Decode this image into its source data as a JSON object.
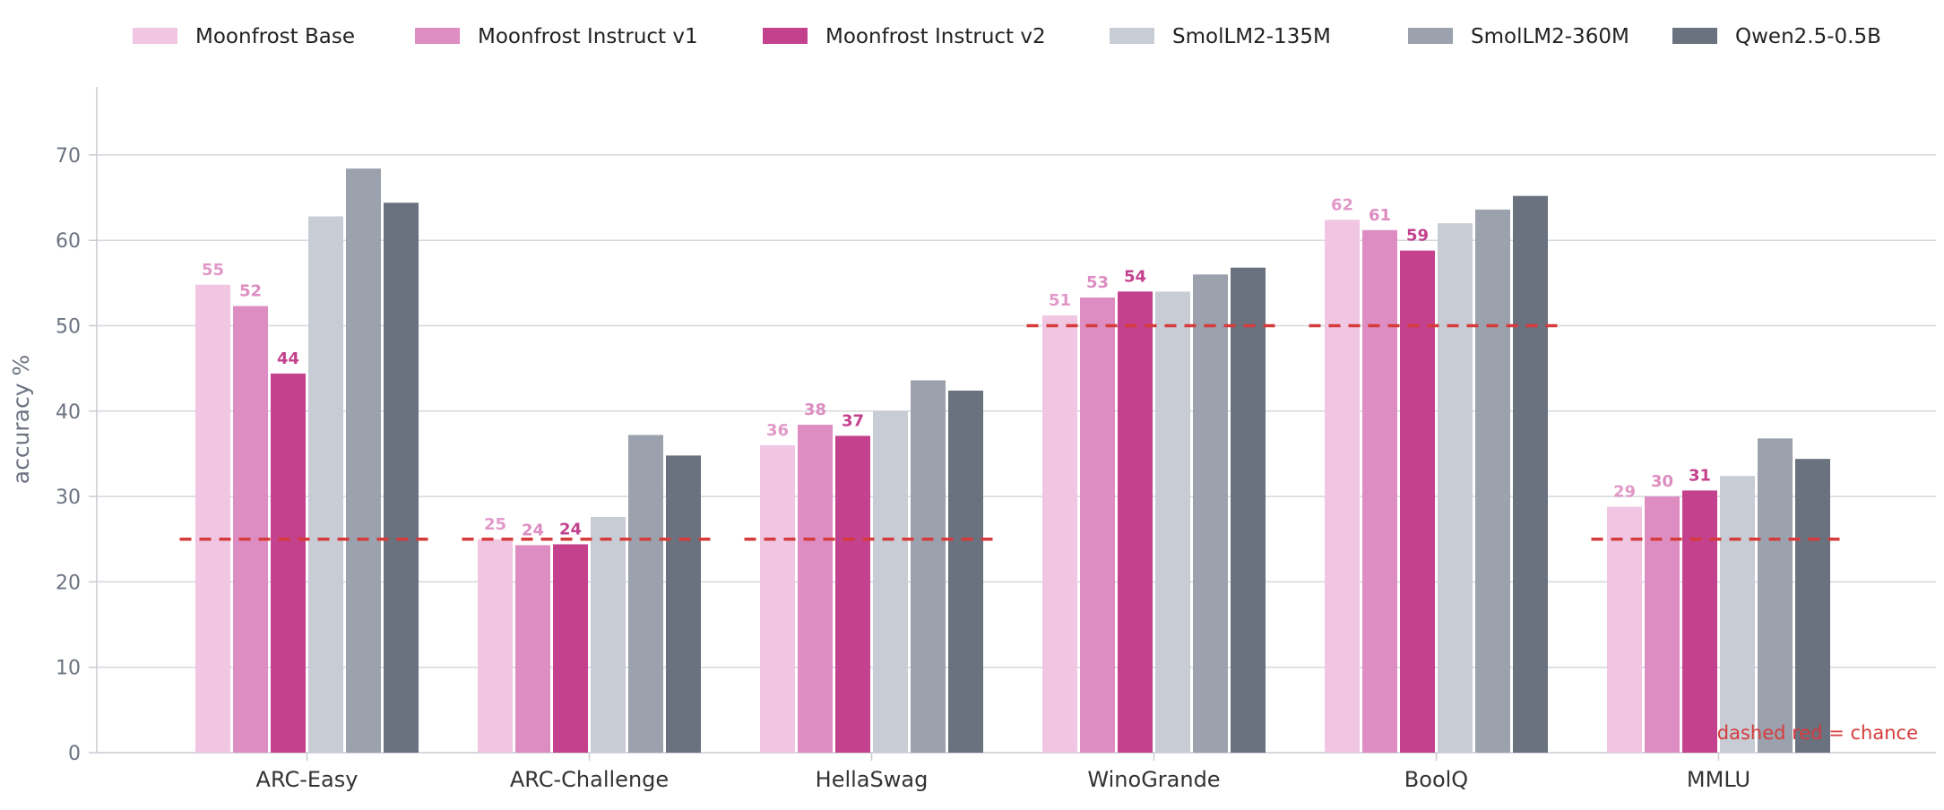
{
  "chart_data": {
    "type": "bar",
    "title": "",
    "xlabel": "",
    "ylabel": "accuracy %",
    "ylim": [
      0,
      78
    ],
    "yticks": [
      0,
      10,
      20,
      30,
      40,
      50,
      60,
      70
    ],
    "grid": true,
    "legend_position": "top",
    "categories": [
      "ARC-Easy",
      "ARC-Challenge",
      "HellaSwag",
      "WinoGrande",
      "BoolQ",
      "MMLU"
    ],
    "series": [
      {
        "name": "Moonfrost Base",
        "color": "#f0c6e3",
        "values": [
          54.8,
          25.0,
          36.0,
          51.2,
          62.4,
          28.8
        ],
        "labels": [
          "55",
          "25",
          "36",
          "51",
          "62",
          "29"
        ],
        "label_color": "#e298c8"
      },
      {
        "name": "Moonfrost Instruct v1",
        "color": "#dd8dc2",
        "values": [
          52.3,
          24.3,
          38.4,
          53.3,
          61.2,
          30.0
        ],
        "labels": [
          "52",
          "24",
          "38",
          "53",
          "61",
          "30"
        ],
        "label_color": "#dd8dc2"
      },
      {
        "name": "Moonfrost Instruct v2",
        "color": "#c3418d",
        "values": [
          44.4,
          24.4,
          37.1,
          54.0,
          58.8,
          30.7
        ],
        "labels": [
          "44",
          "24",
          "37",
          "54",
          "59",
          "31"
        ],
        "label_color": "#c3418d"
      },
      {
        "name": "SmolLM2-135M",
        "color": "#c8ccd5",
        "values": [
          62.8,
          27.6,
          40.0,
          54.0,
          62.0,
          32.4
        ]
      },
      {
        "name": "SmolLM2-360M",
        "color": "#9ba1ad",
        "values": [
          68.4,
          37.2,
          43.6,
          56.0,
          63.6,
          36.8
        ]
      },
      {
        "name": "Qwen2.5-0.5B",
        "color": "#6a717f",
        "values": [
          64.4,
          34.8,
          42.4,
          56.8,
          65.2,
          34.4
        ]
      }
    ],
    "chance": [
      25,
      25,
      25,
      50,
      50,
      25
    ],
    "chance_color": "#d63b3b",
    "annotation": "dashed red = chance",
    "annotation_color": "#d63b3b",
    "axis_color": "#c9ccd4",
    "grid_color": "#d5d8de"
  }
}
